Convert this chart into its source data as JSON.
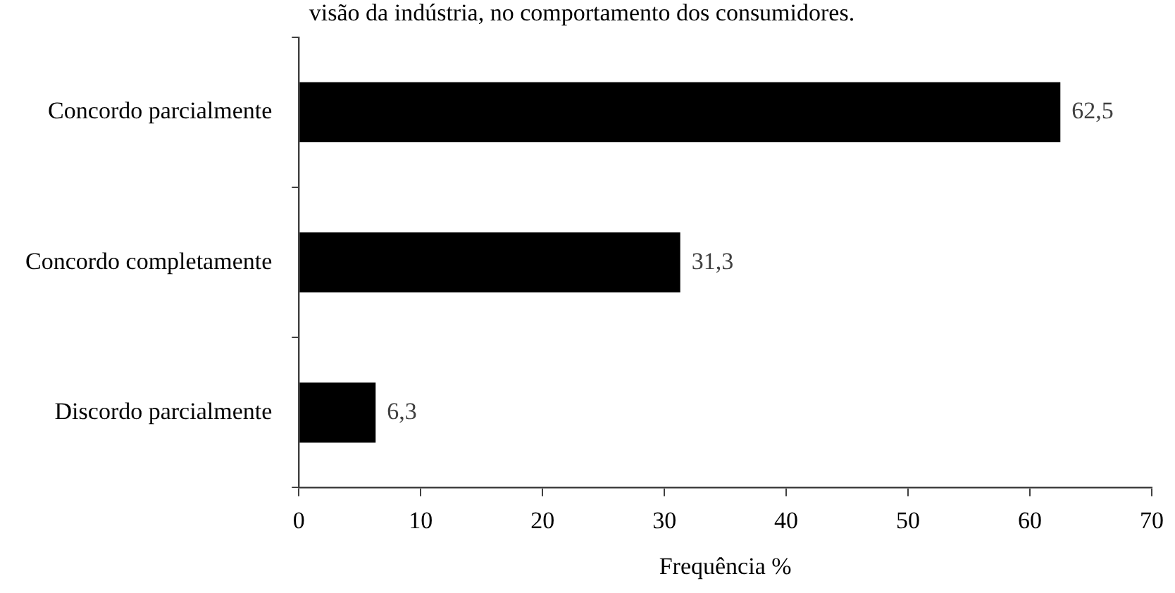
{
  "chart_data": {
    "type": "bar",
    "orientation": "horizontal",
    "title": "visão da indústria, no comportamento dos consumidores.",
    "xlabel": "Frequência %",
    "categories": [
      "Concordo parcialmente",
      "Concordo completamente",
      "Discordo parcialmente"
    ],
    "values": [
      62.5,
      31.3,
      6.3
    ],
    "color": "#000000",
    "value_labels": [
      "62,5",
      "31,3",
      "6,3"
    ],
    "xlim": [
      0,
      70
    ],
    "xticks": [
      0,
      10,
      20,
      30,
      40,
      50,
      60,
      70
    ],
    "grid": false,
    "legend": false
  }
}
